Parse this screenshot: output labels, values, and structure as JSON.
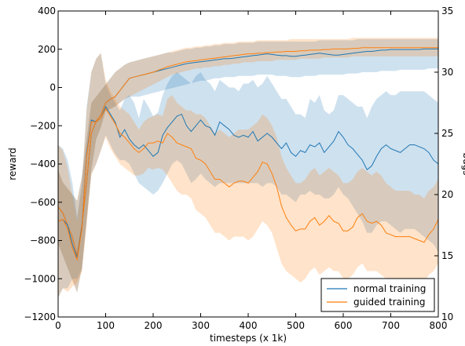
{
  "chart_data": {
    "type": "line",
    "xlabel": "timesteps (x 1k)",
    "ylabel": "reward",
    "ylabel_right": "bugs",
    "xlim": [
      0,
      800
    ],
    "ylim": [
      -1200,
      400
    ],
    "ylim_right": [
      10,
      35
    ],
    "xticks": [
      "0",
      "100",
      "200",
      "300",
      "400",
      "500",
      "600",
      "700",
      "800"
    ],
    "yticks": [
      "400",
      "200",
      "0",
      "−200",
      "−400",
      "−600",
      "−800",
      "−1000",
      "−1200"
    ],
    "yticks_right": [
      "35",
      "30",
      "25",
      "20",
      "15",
      "10"
    ],
    "legend_position": "lower-right",
    "colors": {
      "normal": "#1f77b4",
      "guided": "#ff7f0e"
    },
    "x": [
      0,
      10,
      20,
      30,
      40,
      50,
      60,
      70,
      80,
      90,
      100,
      110,
      120,
      130,
      140,
      150,
      160,
      170,
      180,
      190,
      200,
      210,
      220,
      230,
      240,
      250,
      260,
      270,
      280,
      290,
      300,
      310,
      320,
      330,
      340,
      350,
      360,
      370,
      380,
      390,
      400,
      410,
      420,
      430,
      440,
      450,
      460,
      470,
      480,
      490,
      500,
      510,
      520,
      530,
      540,
      550,
      560,
      570,
      580,
      590,
      600,
      610,
      620,
      630,
      640,
      650,
      660,
      670,
      680,
      690,
      700,
      710,
      720,
      730,
      740,
      750,
      760,
      770,
      780,
      790,
      800
    ],
    "series": [
      {
        "name": "normal training",
        "axis": "right",
        "color": "#1f77b4",
        "values": [
          19.0,
          18.5,
          17.5,
          16.5,
          15.0,
          17.5,
          21.0,
          25.0,
          26.0,
          26.5,
          27.5,
          27.8,
          28.0,
          28.5,
          29.0,
          29.5,
          29.6,
          29.7,
          29.8,
          29.9,
          30.0,
          30.1,
          30.2,
          30.3,
          30.4,
          30.5,
          30.6,
          30.7,
          30.75,
          30.8,
          30.85,
          30.9,
          30.95,
          31.0,
          31.05,
          31.1,
          31.1,
          31.15,
          31.2,
          31.25,
          31.3,
          31.35,
          31.4,
          31.45,
          31.5,
          31.45,
          31.4,
          31.35,
          31.35,
          31.3,
          31.3,
          31.35,
          31.4,
          31.45,
          31.5,
          31.55,
          31.5,
          31.45,
          31.4,
          31.4,
          31.45,
          31.5,
          31.55,
          31.6,
          31.65,
          31.7,
          31.7,
          31.75,
          31.8,
          31.8,
          31.85,
          31.85,
          31.85,
          31.85,
          31.85,
          31.85,
          31.85,
          31.9,
          31.9,
          31.9,
          31.9
        ],
        "band_lower": [
          16.0,
          15.0,
          14.0,
          13.0,
          12.0,
          14.0,
          18.0,
          22.0,
          24.5,
          25.5,
          26.8,
          27.0,
          27.2,
          27.5,
          27.8,
          28.0,
          28.0,
          28.0,
          28.1,
          28.2,
          28.3,
          28.4,
          28.5,
          28.6,
          28.7,
          28.8,
          28.9,
          29.0,
          29.1,
          29.2,
          29.3,
          29.3,
          29.4,
          29.5,
          29.5,
          29.6,
          29.6,
          29.6,
          29.7,
          29.7,
          29.7,
          29.7,
          29.8,
          29.8,
          29.8,
          29.8,
          29.7,
          29.7,
          29.7,
          29.6,
          29.6,
          29.6,
          29.7,
          29.7,
          29.7,
          29.8,
          29.8,
          29.8,
          29.8,
          29.8,
          29.8,
          29.9,
          29.9,
          29.9,
          30.0,
          30.0,
          30.0,
          30.0,
          30.1,
          30.1,
          30.1,
          30.1,
          30.2,
          30.2,
          30.2,
          30.2,
          30.2,
          30.2,
          30.3,
          30.3,
          30.3
        ],
        "band_upper": [
          22.0,
          21.0,
          20.5,
          20.0,
          19.5,
          21.5,
          24.5,
          27.5,
          28.0,
          28.5,
          29.0,
          29.5,
          30.0,
          30.3,
          30.6,
          30.8,
          30.9,
          31.0,
          31.1,
          31.2,
          31.3,
          31.4,
          31.5,
          31.6,
          31.6,
          31.7,
          31.8,
          31.9,
          31.9,
          32.0,
          32.0,
          32.1,
          32.1,
          32.2,
          32.2,
          32.3,
          32.3,
          32.3,
          32.4,
          32.4,
          32.4,
          32.4,
          32.5,
          32.5,
          32.5,
          32.5,
          32.5,
          32.5,
          32.5,
          32.5,
          32.5,
          32.5,
          32.5,
          32.5,
          32.5,
          32.6,
          32.6,
          32.6,
          32.6,
          32.6,
          32.6,
          32.6,
          32.6,
          32.7,
          32.7,
          32.7,
          32.7,
          32.7,
          32.7,
          32.7,
          32.7,
          32.7,
          32.7,
          32.7,
          32.7,
          32.7,
          32.7,
          32.7,
          32.7,
          32.7,
          32.7
        ]
      },
      {
        "name": "guided training",
        "axis": "right",
        "color": "#ff7f0e",
        "values": [
          19.0,
          18.5,
          17.5,
          16.5,
          15.0,
          17.5,
          21.0,
          25.0,
          26.0,
          26.5,
          27.5,
          27.8,
          28.0,
          28.5,
          29.0,
          29.5,
          29.6,
          29.7,
          29.8,
          29.9,
          30.0,
          30.15,
          30.3,
          30.45,
          30.55,
          30.65,
          30.75,
          30.85,
          30.9,
          30.95,
          31.0,
          31.05,
          31.1,
          31.15,
          31.2,
          31.25,
          31.3,
          31.35,
          31.4,
          31.45,
          31.5,
          31.5,
          31.55,
          31.55,
          31.6,
          31.6,
          31.65,
          31.65,
          31.7,
          31.7,
          31.7,
          31.75,
          31.75,
          31.8,
          31.8,
          31.8,
          31.85,
          31.85,
          31.9,
          31.9,
          31.9,
          31.9,
          31.95,
          31.95,
          32.0,
          32.0,
          32.0,
          32.0,
          32.0,
          32.0,
          32.0,
          32.0,
          32.0,
          32.0,
          32.0,
          32.0,
          32.0,
          32.0,
          32.0,
          32.0,
          32.0
        ],
        "band_lower": [
          16.0,
          15.0,
          14.0,
          13.0,
          12.0,
          14.0,
          18.0,
          22.0,
          24.5,
          25.5,
          26.8,
          27.0,
          27.2,
          27.5,
          27.8,
          28.0,
          28.2,
          28.4,
          28.6,
          28.8,
          29.0,
          29.2,
          29.4,
          29.6,
          29.8,
          29.9,
          30.0,
          30.1,
          30.2,
          30.3,
          30.3,
          30.4,
          30.4,
          30.5,
          30.5,
          30.6,
          30.6,
          30.7,
          30.7,
          30.8,
          30.8,
          30.8,
          30.9,
          30.9,
          30.9,
          30.9,
          31.0,
          31.0,
          31.0,
          31.0,
          31.0,
          31.1,
          31.1,
          31.1,
          31.1,
          31.1,
          31.2,
          31.2,
          31.2,
          31.2,
          31.2,
          31.2,
          31.3,
          31.3,
          31.3,
          31.3,
          31.3,
          31.3,
          31.3,
          31.3,
          31.3,
          31.3,
          31.3,
          31.3,
          31.3,
          31.3,
          31.3,
          31.3,
          31.3,
          31.3,
          31.3
        ],
        "band_upper": [
          22.0,
          21.0,
          20.5,
          20.0,
          19.5,
          21.5,
          24.5,
          27.5,
          28.0,
          28.5,
          29.0,
          29.5,
          30.0,
          30.3,
          30.6,
          30.8,
          30.9,
          31.0,
          31.1,
          31.2,
          31.3,
          31.4,
          31.5,
          31.6,
          31.7,
          31.8,
          31.9,
          32.0,
          32.0,
          32.1,
          32.1,
          32.2,
          32.2,
          32.3,
          32.3,
          32.4,
          32.4,
          32.4,
          32.5,
          32.5,
          32.5,
          32.5,
          32.6,
          32.6,
          32.6,
          32.6,
          32.6,
          32.6,
          32.6,
          32.7,
          32.7,
          32.7,
          32.7,
          32.7,
          32.7,
          32.7,
          32.7,
          32.7,
          32.7,
          32.7,
          32.7,
          32.7,
          32.8,
          32.8,
          32.8,
          32.8,
          32.8,
          32.8,
          32.8,
          32.8,
          32.8,
          32.8,
          32.8,
          32.8,
          32.8,
          32.8,
          32.8,
          32.8,
          32.8,
          32.8,
          32.8
        ]
      },
      {
        "name": "normal training",
        "axis": "left",
        "color": "#1f77b4",
        "values": [
          -700,
          -690,
          -720,
          -820,
          -890,
          -730,
          -350,
          -170,
          -180,
          -160,
          -100,
          -140,
          -180,
          -260,
          -220,
          -270,
          -300,
          -320,
          -300,
          -330,
          -360,
          -340,
          -250,
          -210,
          -180,
          -150,
          -140,
          -200,
          -230,
          -200,
          -170,
          -200,
          -210,
          -250,
          -180,
          -200,
          -220,
          -250,
          -260,
          -250,
          -260,
          -230,
          -280,
          -260,
          -240,
          -260,
          -290,
          -320,
          -290,
          -340,
          -360,
          -330,
          -340,
          -300,
          -310,
          -290,
          -340,
          -310,
          -280,
          -230,
          -260,
          -300,
          -320,
          -350,
          -380,
          -430,
          -410,
          -360,
          -320,
          -300,
          -320,
          -330,
          -340,
          -320,
          -300,
          -300,
          -310,
          -320,
          -340,
          -380,
          -400
        ],
        "band_lower": [
          -1100,
          -1050,
          -1050,
          -1000,
          -1000,
          -950,
          -700,
          -450,
          -400,
          -330,
          -250,
          -300,
          -350,
          -380,
          -380,
          -400,
          -450,
          -500,
          -520,
          -540,
          -560,
          -540,
          -500,
          -450,
          -400,
          -380,
          -400,
          -450,
          -500,
          -480,
          -450,
          -480,
          -500,
          -520,
          -500,
          -500,
          -500,
          -500,
          -500,
          -500,
          -500,
          -500,
          -500,
          -520,
          -500,
          -500,
          -520,
          -560,
          -560,
          -580,
          -600,
          -560,
          -560,
          -540,
          -560,
          -560,
          -580,
          -580,
          -560,
          -520,
          -560,
          -580,
          -620,
          -660,
          -700,
          -760,
          -760,
          -720,
          -700,
          -700,
          -720,
          -740,
          -760,
          -740,
          -740,
          -740,
          -760,
          -780,
          -800,
          -820,
          -860
        ],
        "band_upper": [
          -300,
          -320,
          -380,
          -500,
          -680,
          -500,
          -100,
          80,
          150,
          180,
          20,
          -40,
          -80,
          -120,
          -60,
          -40,
          -80,
          -160,
          -60,
          -100,
          -150,
          -130,
          -40,
          20,
          60,
          80,
          60,
          40,
          20,
          60,
          80,
          40,
          20,
          -20,
          40,
          20,
          0,
          0,
          -20,
          20,
          20,
          40,
          0,
          20,
          60,
          20,
          -20,
          -60,
          -60,
          -100,
          -140,
          -140,
          -160,
          -60,
          -80,
          -40,
          -120,
          -140,
          -120,
          -40,
          -40,
          -60,
          -80,
          -100,
          -100,
          -160,
          -100,
          -60,
          -40,
          -20,
          -40,
          -40,
          -20,
          -20,
          -20,
          -20,
          -20,
          -20,
          -40,
          -60,
          -80
        ]
      },
      {
        "name": "guided training",
        "axis": "left",
        "color": "#ff7f0e",
        "values": [
          -700,
          -690,
          -740,
          -840,
          -900,
          -740,
          -360,
          -180,
          -180,
          -160,
          -110,
          -150,
          -190,
          -240,
          -260,
          -290,
          -320,
          -340,
          -320,
          -290,
          -290,
          -280,
          -290,
          -240,
          -260,
          -290,
          -300,
          -310,
          -320,
          -370,
          -380,
          -400,
          -440,
          -480,
          -480,
          -500,
          -520,
          -500,
          -490,
          -490,
          -500,
          -470,
          -440,
          -390,
          -400,
          -450,
          -520,
          -620,
          -680,
          -720,
          -750,
          -740,
          -740,
          -700,
          -680,
          -720,
          -700,
          -670,
          -700,
          -710,
          -750,
          -750,
          -730,
          -680,
          -660,
          -700,
          -710,
          -700,
          -720,
          -760,
          -770,
          -780,
          -780,
          -780,
          -780,
          -790,
          -800,
          -810,
          -770,
          -740,
          -690
        ],
        "band_lower": [
          -1100,
          -1050,
          -1070,
          -1040,
          -1020,
          -960,
          -720,
          -460,
          -400,
          -330,
          -260,
          -320,
          -360,
          -400,
          -420,
          -440,
          -460,
          -460,
          -450,
          -420,
          -430,
          -420,
          -430,
          -460,
          -500,
          -540,
          -560,
          -560,
          -580,
          -640,
          -660,
          -680,
          -720,
          -760,
          -760,
          -780,
          -800,
          -780,
          -780,
          -780,
          -800,
          -780,
          -740,
          -700,
          -720,
          -760,
          -840,
          -920,
          -960,
          -980,
          -1000,
          -1020,
          -1000,
          -960,
          -940,
          -980,
          -960,
          -940,
          -960,
          -960,
          -1000,
          -1000,
          -980,
          -940,
          -920,
          -960,
          -960,
          -960,
          -980,
          -1000,
          -1020,
          -1020,
          -1020,
          -1000,
          -1000,
          -1020,
          -1020,
          -1020,
          -980,
          -960,
          -920
        ],
        "band_upper": [
          -300,
          -330,
          -420,
          -560,
          -700,
          -520,
          -120,
          80,
          150,
          180,
          40,
          -20,
          -60,
          -100,
          -120,
          -140,
          -180,
          -220,
          -180,
          -160,
          -150,
          -140,
          -150,
          -60,
          -40,
          -80,
          -100,
          -120,
          -120,
          -140,
          -140,
          -160,
          -200,
          -240,
          -220,
          -240,
          -260,
          -240,
          -220,
          -220,
          -220,
          -200,
          -180,
          -140,
          -160,
          -200,
          -260,
          -360,
          -420,
          -460,
          -500,
          -500,
          -480,
          -440,
          -420,
          -460,
          -440,
          -420,
          -440,
          -460,
          -500,
          -500,
          -480,
          -440,
          -420,
          -440,
          -460,
          -440,
          -460,
          -500,
          -520,
          -540,
          -540,
          -540,
          -540,
          -560,
          -560,
          -580,
          -540,
          -520,
          -480
        ]
      }
    ]
  }
}
